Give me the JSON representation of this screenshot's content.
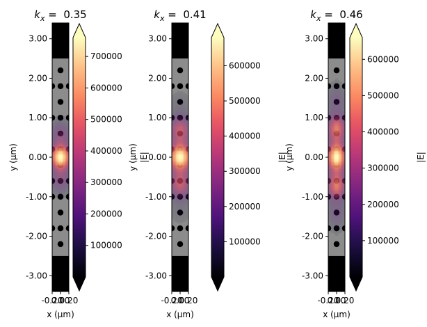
{
  "chart_data": [
    {
      "type": "heatmap",
      "title": "k_x = 0.35",
      "title_base": "k",
      "title_sub": "x",
      "title_eq": " = ",
      "title_value": "0.35",
      "xlabel": "x (μm)",
      "ylabel": "y (μm)",
      "x_tick_labels": [
        "-0.20",
        "0.00",
        "0.20"
      ],
      "y_ticks": [
        3,
        2,
        1,
        0,
        -1,
        -2,
        -3
      ],
      "y_tick_labels": [
        "3.00",
        "2.00",
        "1.00",
        "0.00",
        "-1.00",
        "-2.00",
        "-3.00"
      ],
      "xlim": [
        -0.2,
        0.2
      ],
      "ylim": [
        -3.4,
        3.4
      ],
      "colorbar": {
        "label": "|E|",
        "min": 0,
        "max": 760000,
        "ticks": [
          100000,
          200000,
          300000,
          400000,
          500000,
          600000,
          700000
        ],
        "tick_labels": [
          "100000",
          "200000",
          "300000",
          "400000",
          "500000",
          "600000",
          "700000"
        ],
        "colormap": "magma",
        "extend": "both"
      },
      "field": {
        "peak_y": 0.0,
        "sigma_y": 0.5,
        "sigma_x": 0.12
      }
    },
    {
      "type": "heatmap",
      "title": "k_x = 0.41",
      "title_base": "k",
      "title_sub": "x",
      "title_eq": " = ",
      "title_value": "0.41",
      "xlabel": "x (μm)",
      "ylabel": "y (μm)",
      "x_tick_labels": [
        "-0.20",
        "0.00",
        "0.20"
      ],
      "y_ticks": [
        3,
        2,
        1,
        0,
        -1,
        -2,
        -3
      ],
      "y_tick_labels": [
        "3.00",
        "2.00",
        "1.00",
        "0.00",
        "-1.00",
        "-2.00",
        "-3.00"
      ],
      "xlim": [
        -0.2,
        0.2
      ],
      "ylim": [
        -3.4,
        3.4
      ],
      "colorbar": {
        "label": "|E|",
        "min": 0,
        "max": 680000,
        "ticks": [
          100000,
          200000,
          300000,
          400000,
          500000,
          600000
        ],
        "tick_labels": [
          "100000",
          "200000",
          "300000",
          "400000",
          "500000",
          "600000"
        ],
        "colormap": "magma",
        "extend": "both"
      },
      "field": {
        "peak_y": 0.0,
        "sigma_y": 0.75,
        "sigma_x": 0.14
      }
    },
    {
      "type": "heatmap",
      "title": "k_x = 0.46",
      "title_base": "k",
      "title_sub": "x",
      "title_eq": " = ",
      "title_value": "0.46",
      "xlabel": "x (μm)",
      "ylabel": "y (μm)",
      "x_tick_labels": [
        "-0.20",
        "0.00",
        "0.20"
      ],
      "y_ticks": [
        3,
        2,
        1,
        0,
        -1,
        -2,
        -3
      ],
      "y_tick_labels": [
        "3.00",
        "2.00",
        "1.00",
        "0.00",
        "-1.00",
        "-2.00",
        "-3.00"
      ],
      "xlim": [
        -0.2,
        0.2
      ],
      "ylim": [
        -3.4,
        3.4
      ],
      "colorbar": {
        "label": "|E|",
        "min": 0,
        "max": 660000,
        "ticks": [
          100000,
          200000,
          300000,
          400000,
          500000,
          600000
        ],
        "tick_labels": [
          "100000",
          "200000",
          "300000",
          "400000",
          "500000",
          "600000"
        ],
        "colormap": "magma",
        "extend": "both"
      },
      "field": {
        "peak_y": 0.0,
        "sigma_y": 0.95,
        "sigma_x": 0.11
      }
    }
  ],
  "structure": {
    "slab_ylim": [
      -2.5,
      2.5
    ],
    "hole_radius": 0.11,
    "holes": [
      [
        0,
        2.2
      ],
      [
        0,
        1.4
      ],
      [
        0,
        0.6
      ],
      [
        0,
        -0.2
      ],
      [
        0,
        -0.6
      ],
      [
        0,
        -1.4
      ],
      [
        0,
        -2.2
      ],
      [
        0,
        0.2
      ],
      [
        0,
        -1.0
      ],
      [
        0,
        1.8
      ],
      [
        0,
        -1.8
      ],
      [
        0,
        1.0
      ],
      [
        -0.2,
        1.8
      ],
      [
        -0.2,
        1.0
      ],
      [
        -0.2,
        0.2
      ],
      [
        -0.2,
        -0.6
      ],
      [
        -0.2,
        -1.8
      ],
      [
        -0.2,
        -1.0
      ],
      [
        0.2,
        1.8
      ],
      [
        0.2,
        1.0
      ],
      [
        0.2,
        0.2
      ],
      [
        0.2,
        -0.6
      ],
      [
        0.2,
        -1.8
      ],
      [
        0.2,
        -1.0
      ]
    ],
    "colors": {
      "outside": "#000000",
      "slab": "#8c8c8c",
      "hole": "#000000"
    }
  }
}
